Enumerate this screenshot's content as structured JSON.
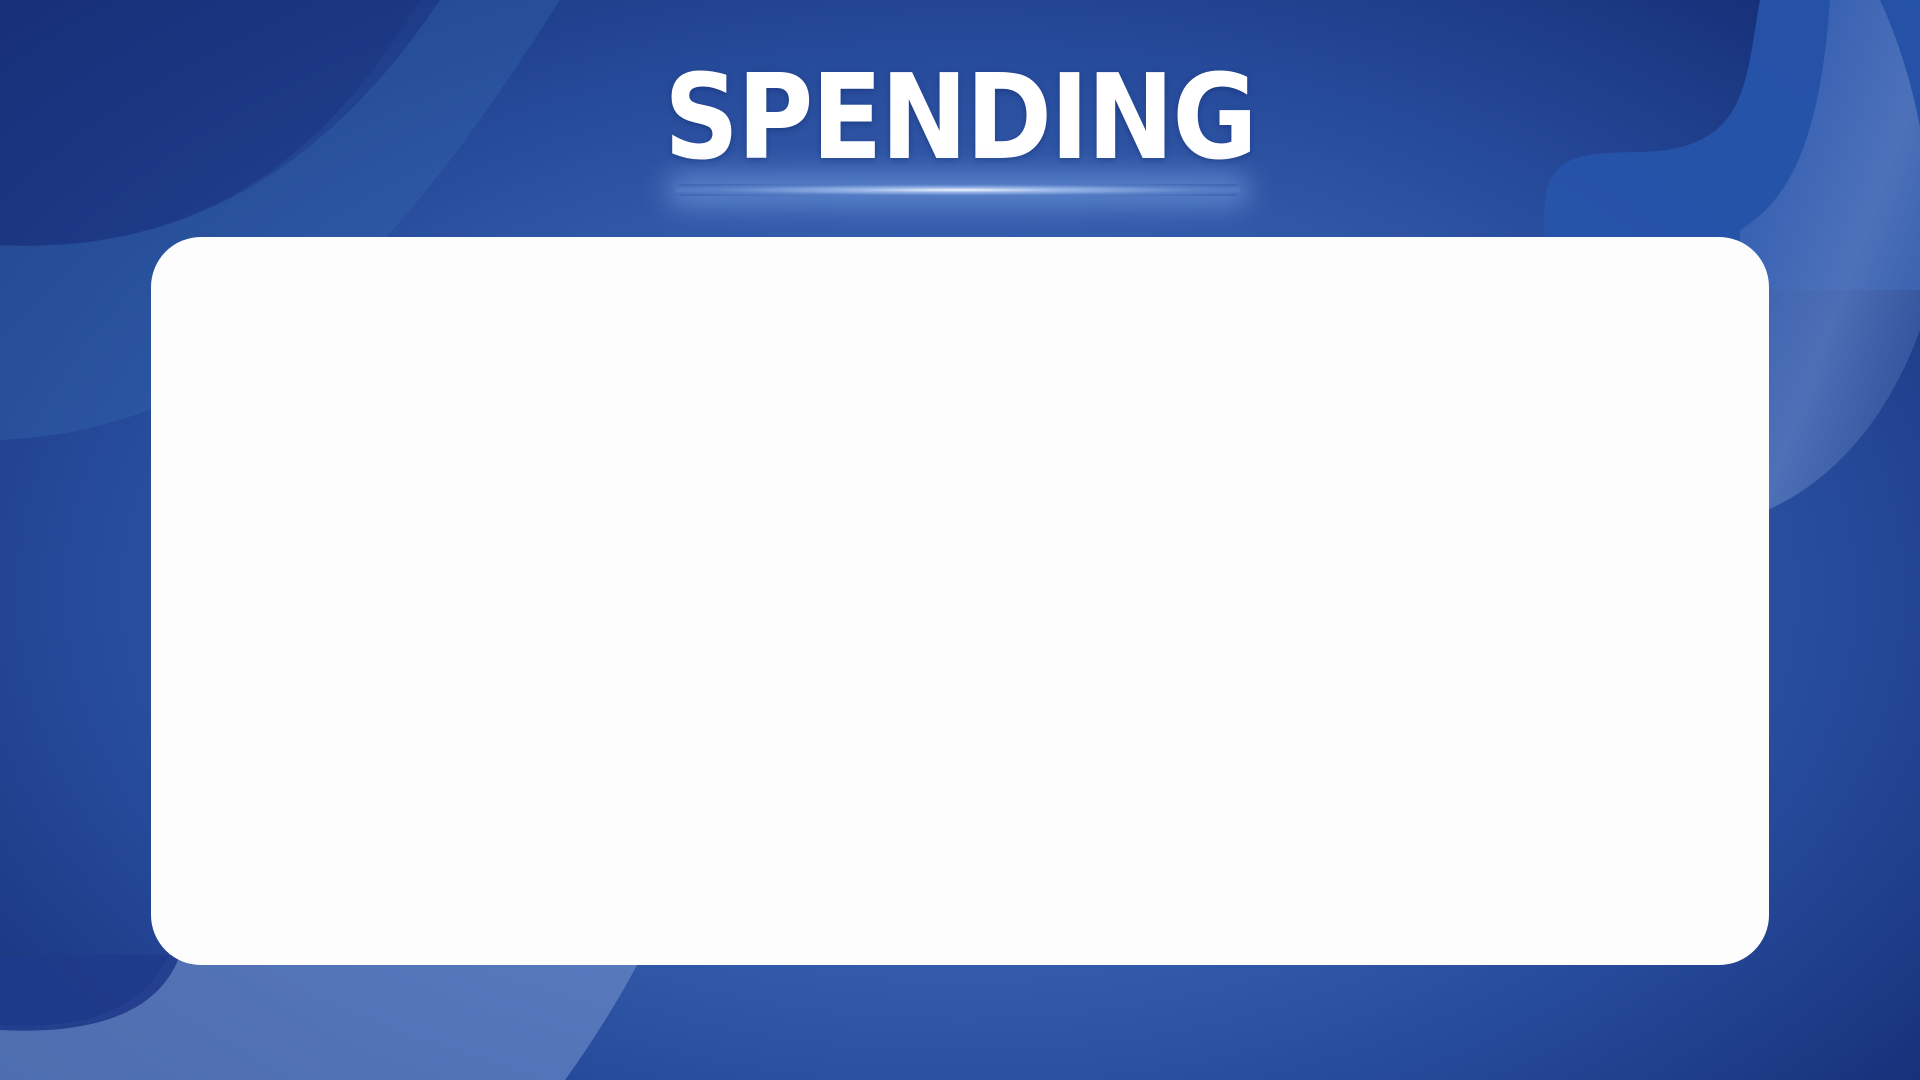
{
  "slide": {
    "title": "SPENDING"
  },
  "colors": {
    "background_light": "#4f7cc9",
    "background_dark": "#12296f",
    "title_text": "#ffffff",
    "panel": "#fdfdfd"
  }
}
